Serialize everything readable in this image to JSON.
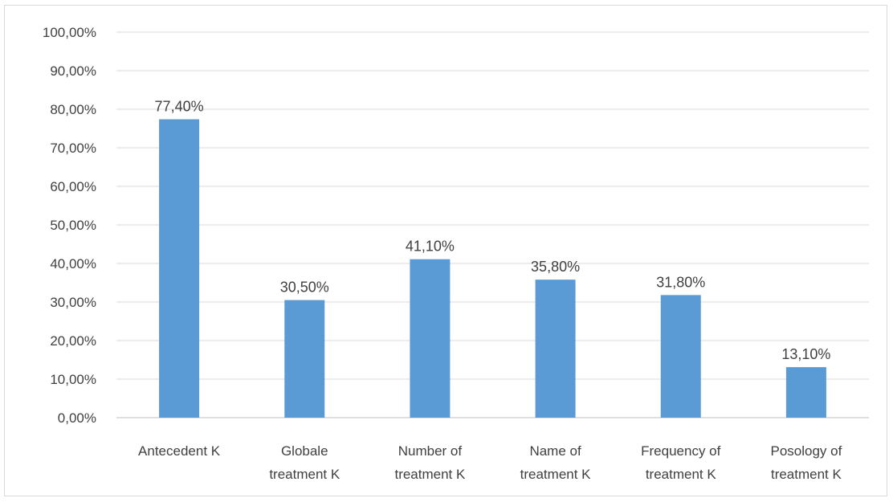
{
  "chart_data": {
    "type": "bar",
    "title": "",
    "xlabel": "",
    "ylabel": "",
    "categories": [
      [
        "Antecedent K"
      ],
      [
        "Globale",
        "treatment K"
      ],
      [
        "Number of",
        "treatment K"
      ],
      [
        "Name  of",
        "treatment K"
      ],
      [
        "Frequency of",
        "treatment K"
      ],
      [
        "Posology of",
        "treatment K"
      ]
    ],
    "values": [
      77.4,
      30.5,
      41.1,
      35.8,
      31.8,
      13.1
    ],
    "data_labels": [
      "77,40%",
      "30,50%",
      "41,10%",
      "35,80%",
      "31,80%",
      "13,10%"
    ],
    "yticks": [
      "0,00%",
      "10,00%",
      "20,00%",
      "30,00%",
      "40,00%",
      "50,00%",
      "60,00%",
      "70,00%",
      "80,00%",
      "90,00%",
      "100,00%"
    ],
    "ylim": [
      0,
      100
    ],
    "grid": true,
    "legend": "none",
    "bar_color": "#5b9bd5"
  }
}
